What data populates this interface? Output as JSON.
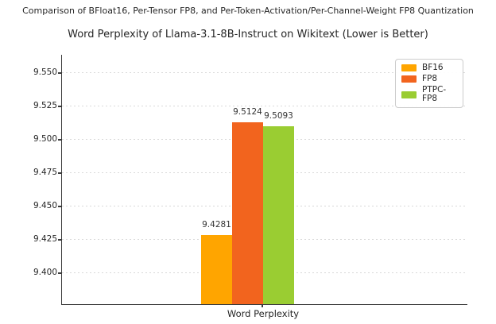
{
  "header": {
    "caption": "Comparison of BFloat16, Per-Tensor FP8, and Per-Token-Activation/Per-Channel-Weight FP8 Quantization",
    "title": "Word Perplexity of Llama-3.1-8B-Instruct on Wikitext (Lower is Better)"
  },
  "chart_data": {
    "type": "bar",
    "title": "Word Perplexity of Llama-3.1-8B-Instruct on Wikitext (Lower is Better)",
    "categories": [
      "Word Perplexity"
    ],
    "series": [
      {
        "name": "BF16",
        "color": "#FFA500",
        "values": [
          9.4281
        ],
        "value_labels": [
          "9.4281"
        ]
      },
      {
        "name": "FP8",
        "color": "#F2641E",
        "values": [
          9.5124
        ],
        "value_labels": [
          "9.5124"
        ]
      },
      {
        "name": "PTPC-FP8",
        "color": "#9ACD32",
        "values": [
          9.5093
        ],
        "value_labels": [
          "9.5093"
        ]
      }
    ],
    "xlabel": "Word Perplexity",
    "ylabel": "",
    "ylim": [
      9.3762,
      9.5631
    ],
    "ytick_labels": [
      "9.400",
      "9.425",
      "9.450",
      "9.475",
      "9.500",
      "9.525",
      "9.550"
    ],
    "grid": "horizontal-dotted",
    "legend_position": "upper-right",
    "axis_color": "#3B3B3B",
    "grid_color": "#D9D9D9"
  }
}
